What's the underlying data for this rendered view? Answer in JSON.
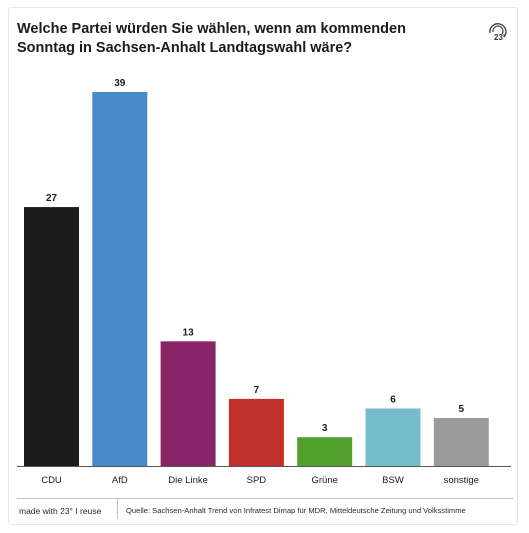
{
  "title": "Welche Partei würden Sie wählen, wenn am kommenden Sonntag in Sachsen-Anhalt Landtagswahl wäre?",
  "logo_text": "23°",
  "footer": {
    "made_with": "made with 23° I reuse",
    "source": "Quelle: Sachsen-Anhalt Trend von Infratest Dimap für MDR, Mitteldeutsche Zeitung und Volksstimme"
  },
  "chart_data": {
    "type": "bar",
    "title": "Welche Partei würden Sie wählen, wenn am kommenden Sonntag in Sachsen-Anhalt Landtagswahl wäre?",
    "xlabel": "",
    "ylabel": "",
    "categories": [
      "CDU",
      "AfD",
      "Die Linke",
      "SPD",
      "Grüne",
      "BSW",
      "sonstige"
    ],
    "values": [
      27,
      39,
      13,
      7,
      3,
      6,
      5
    ],
    "colors": [
      "#1c1c1c",
      "#4a8ac9",
      "#8a2468",
      "#c0302a",
      "#51a02e",
      "#76bccd",
      "#9a9a9a"
    ],
    "ylim": [
      0,
      39
    ],
    "grid": false,
    "legend": "none"
  }
}
